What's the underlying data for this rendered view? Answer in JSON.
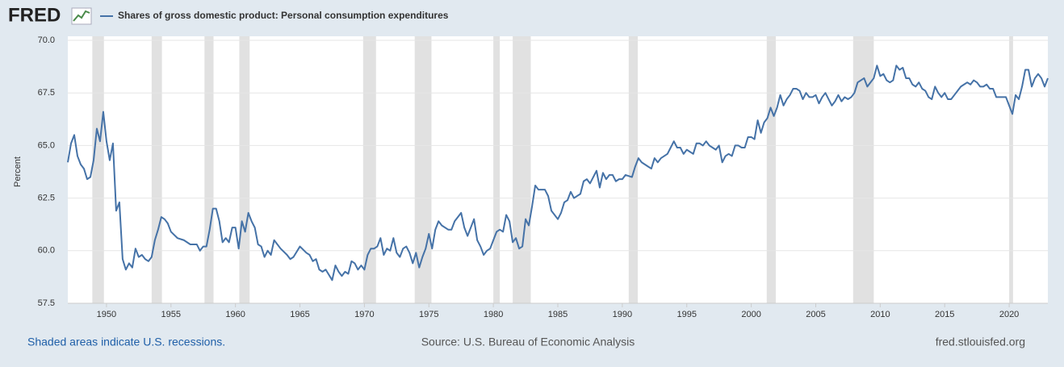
{
  "logo": "FRED",
  "footer": {
    "note": "Shaded areas indicate U.S. recessions.",
    "source": "Source: U.S. Bureau of Economic Analysis",
    "site": "fred.stlouisfed.org"
  },
  "chart_data": {
    "type": "line",
    "y_label": "Percent",
    "series": [
      {
        "name": "Shares of gross domestic product: Personal consumption expenditures",
        "color": "#4572a7",
        "x": [
          1947.0,
          1947.25,
          1947.5,
          1947.75,
          1948.0,
          1948.25,
          1948.5,
          1948.75,
          1949.0,
          1949.25,
          1949.5,
          1949.75,
          1950.0,
          1950.25,
          1950.5,
          1950.75,
          1951.0,
          1951.25,
          1951.5,
          1951.75,
          1952.0,
          1952.25,
          1952.5,
          1952.75,
          1953.0,
          1953.25,
          1953.5,
          1953.75,
          1954.0,
          1954.25,
          1954.5,
          1954.75,
          1955.0,
          1955.5,
          1956.0,
          1956.5,
          1957.0,
          1957.25,
          1957.5,
          1957.75,
          1958.0,
          1958.25,
          1958.5,
          1958.75,
          1959.0,
          1959.25,
          1959.5,
          1959.75,
          1960.0,
          1960.25,
          1960.5,
          1960.75,
          1961.0,
          1961.25,
          1961.5,
          1961.75,
          1962.0,
          1962.25,
          1962.5,
          1962.75,
          1963.0,
          1963.5,
          1964.0,
          1964.25,
          1964.5,
          1965.0,
          1965.5,
          1965.75,
          1966.0,
          1966.25,
          1966.5,
          1966.75,
          1967.0,
          1967.5,
          1967.75,
          1968.0,
          1968.25,
          1968.5,
          1968.75,
          1969.0,
          1969.25,
          1969.5,
          1969.75,
          1970.0,
          1970.25,
          1970.5,
          1970.75,
          1971.0,
          1971.25,
          1971.5,
          1971.75,
          1972.0,
          1972.25,
          1972.5,
          1972.75,
          1973.0,
          1973.25,
          1973.5,
          1973.75,
          1974.0,
          1974.25,
          1974.5,
          1974.75,
          1975.0,
          1975.25,
          1975.5,
          1975.75,
          1976.0,
          1976.5,
          1976.75,
          1977.0,
          1977.5,
          1977.75,
          1978.0,
          1978.25,
          1978.5,
          1978.75,
          1979.0,
          1979.25,
          1979.5,
          1979.75,
          1980.0,
          1980.25,
          1980.5,
          1980.75,
          1981.0,
          1981.25,
          1981.5,
          1981.75,
          1982.0,
          1982.25,
          1982.5,
          1982.75,
          1983.0,
          1983.25,
          1983.5,
          1984.0,
          1984.25,
          1984.5,
          1985.0,
          1985.25,
          1985.5,
          1985.75,
          1986.0,
          1986.25,
          1986.75,
          1987.0,
          1987.25,
          1987.5,
          1988.0,
          1988.25,
          1988.5,
          1988.75,
          1989.0,
          1989.25,
          1989.5,
          1989.75,
          1990.0,
          1990.25,
          1990.75,
          1991.0,
          1991.25,
          1991.5,
          1992.0,
          1992.25,
          1992.5,
          1992.75,
          1993.0,
          1993.5,
          1993.75,
          1994.0,
          1994.25,
          1994.5,
          1994.75,
          1995.0,
          1995.5,
          1995.75,
          1996.0,
          1996.25,
          1996.5,
          1996.75,
          1997.0,
          1997.25,
          1997.5,
          1997.75,
          1998.0,
          1998.25,
          1998.5,
          1998.75,
          1999.0,
          1999.25,
          1999.5,
          1999.75,
          2000.0,
          2000.25,
          2000.5,
          2000.75,
          2001.0,
          2001.25,
          2001.5,
          2001.75,
          2002.0,
          2002.25,
          2002.5,
          2002.75,
          2003.0,
          2003.25,
          2003.5,
          2003.75,
          2004.0,
          2004.25,
          2004.5,
          2004.75,
          2005.0,
          2005.25,
          2005.5,
          2005.75,
          2006.0,
          2006.25,
          2006.5,
          2006.75,
          2007.0,
          2007.25,
          2007.5,
          2007.75,
          2008.0,
          2008.25,
          2008.5,
          2008.75,
          2009.0,
          2009.25,
          2009.5,
          2009.75,
          2010.0,
          2010.25,
          2010.5,
          2010.75,
          2011.0,
          2011.25,
          2011.5,
          2011.75,
          2012.0,
          2012.25,
          2012.5,
          2012.75,
          2013.0,
          2013.25,
          2013.5,
          2013.75,
          2014.0,
          2014.25,
          2014.5,
          2014.75,
          2015.0,
          2015.25,
          2015.5,
          2015.75,
          2016.0,
          2016.25,
          2016.5,
          2016.75,
          2017.0,
          2017.25,
          2017.5,
          2017.75,
          2018.0,
          2018.25,
          2018.5,
          2018.75,
          2019.0,
          2019.5,
          2019.75,
          2020.0,
          2020.25,
          2020.5,
          2020.75,
          2021.0,
          2021.25,
          2021.5,
          2021.75,
          2022.0,
          2022.25,
          2022.5,
          2022.75,
          2023.0
        ],
        "values": [
          64.2,
          65.1,
          65.5,
          64.5,
          64.1,
          63.9,
          63.4,
          63.5,
          64.3,
          65.8,
          65.2,
          66.6,
          65.2,
          64.3,
          65.1,
          61.9,
          62.3,
          59.6,
          59.1,
          59.4,
          59.2,
          60.1,
          59.7,
          59.8,
          59.6,
          59.5,
          59.7,
          60.5,
          61.0,
          61.6,
          61.5,
          61.3,
          60.9,
          60.6,
          60.5,
          60.3,
          60.3,
          60.0,
          60.2,
          60.2,
          61.0,
          62.0,
          62.0,
          61.4,
          60.4,
          60.6,
          60.4,
          61.1,
          61.1,
          60.1,
          61.4,
          60.9,
          61.8,
          61.4,
          61.1,
          60.3,
          60.2,
          59.7,
          60.0,
          59.8,
          60.5,
          60.1,
          59.8,
          59.6,
          59.7,
          60.2,
          59.9,
          59.8,
          59.5,
          59.6,
          59.1,
          59.0,
          59.1,
          58.6,
          59.3,
          59.0,
          58.8,
          59.0,
          58.9,
          59.5,
          59.4,
          59.1,
          59.3,
          59.1,
          59.8,
          60.1,
          60.1,
          60.2,
          60.6,
          59.8,
          60.1,
          60.0,
          60.6,
          59.9,
          59.7,
          60.1,
          60.2,
          59.9,
          59.4,
          59.9,
          59.2,
          59.7,
          60.1,
          60.8,
          60.1,
          61.0,
          61.4,
          61.2,
          61.0,
          61.0,
          61.4,
          61.8,
          61.1,
          60.7,
          61.1,
          61.5,
          60.5,
          60.2,
          59.8,
          60.0,
          60.1,
          60.5,
          60.9,
          61.0,
          60.9,
          61.7,
          61.4,
          60.4,
          60.6,
          60.1,
          60.2,
          61.5,
          61.2,
          62.1,
          63.1,
          62.9,
          62.9,
          62.6,
          61.9,
          61.5,
          61.8,
          62.3,
          62.4,
          62.8,
          62.5,
          62.7,
          63.3,
          63.4,
          63.2,
          63.8,
          63.0,
          63.7,
          63.4,
          63.6,
          63.6,
          63.3,
          63.4,
          63.4,
          63.6,
          63.5,
          64.0,
          64.4,
          64.2,
          64.0,
          63.9,
          64.4,
          64.2,
          64.4,
          64.6,
          64.9,
          65.2,
          64.9,
          64.9,
          64.6,
          64.8,
          64.6,
          65.1,
          65.1,
          65.0,
          65.2,
          65.0,
          64.9,
          64.8,
          65.0,
          64.2,
          64.5,
          64.6,
          64.5,
          65.0,
          65.0,
          64.9,
          64.9,
          65.4,
          65.4,
          65.3,
          66.2,
          65.6,
          66.1,
          66.3,
          66.8,
          66.4,
          66.8,
          67.4,
          66.9,
          67.2,
          67.4,
          67.7,
          67.7,
          67.6,
          67.2,
          67.5,
          67.3,
          67.3,
          67.4,
          67.0,
          67.3,
          67.5,
          67.2,
          66.9,
          67.1,
          67.4,
          67.1,
          67.3,
          67.2,
          67.3,
          67.5,
          68.0,
          68.1,
          68.2,
          67.8,
          68.0,
          68.2,
          68.8,
          68.3,
          68.4,
          68.1,
          68.0,
          68.1,
          68.8,
          68.6,
          68.7,
          68.2,
          68.2,
          67.9,
          67.8,
          68.0,
          67.7,
          67.6,
          67.3,
          67.2,
          67.8,
          67.5,
          67.3,
          67.5,
          67.2,
          67.2,
          67.4,
          67.6,
          67.8,
          67.9,
          68.0,
          67.9,
          68.1,
          68.0,
          67.8,
          67.8,
          67.9,
          67.7,
          67.7,
          67.3,
          67.3,
          67.3,
          66.9,
          66.5,
          67.4,
          67.2,
          67.8,
          68.6,
          68.6,
          67.8,
          68.2,
          68.4,
          68.2,
          67.8,
          68.2
        ]
      }
    ],
    "recessions": [
      [
        1948.9,
        1949.8
      ],
      [
        1953.5,
        1954.3
      ],
      [
        1957.6,
        1958.3
      ],
      [
        1960.3,
        1961.1
      ],
      [
        1969.9,
        1970.9
      ],
      [
        1973.9,
        1975.2
      ],
      [
        1980.0,
        1980.5
      ],
      [
        1981.5,
        1982.9
      ],
      [
        1990.5,
        1991.2
      ],
      [
        2001.2,
        2001.9
      ],
      [
        2007.9,
        2009.5
      ],
      [
        2020.0,
        2020.3
      ]
    ],
    "recession_color": "#e1e1e1",
    "xlim": [
      1947,
      2023
    ],
    "xticks": [
      1950,
      1955,
      1960,
      1965,
      1970,
      1975,
      1980,
      1985,
      1990,
      1995,
      2000,
      2005,
      2010,
      2015,
      2020
    ],
    "ylim": [
      57.5,
      70
    ],
    "yticks": [
      57.5,
      {
        "value": 60,
        "label": "60.0"
      },
      62.5,
      {
        "value": 65,
        "label": "65.0"
      },
      67.5,
      {
        "value": 70,
        "label": "70.0"
      }
    ],
    "grid": true
  }
}
